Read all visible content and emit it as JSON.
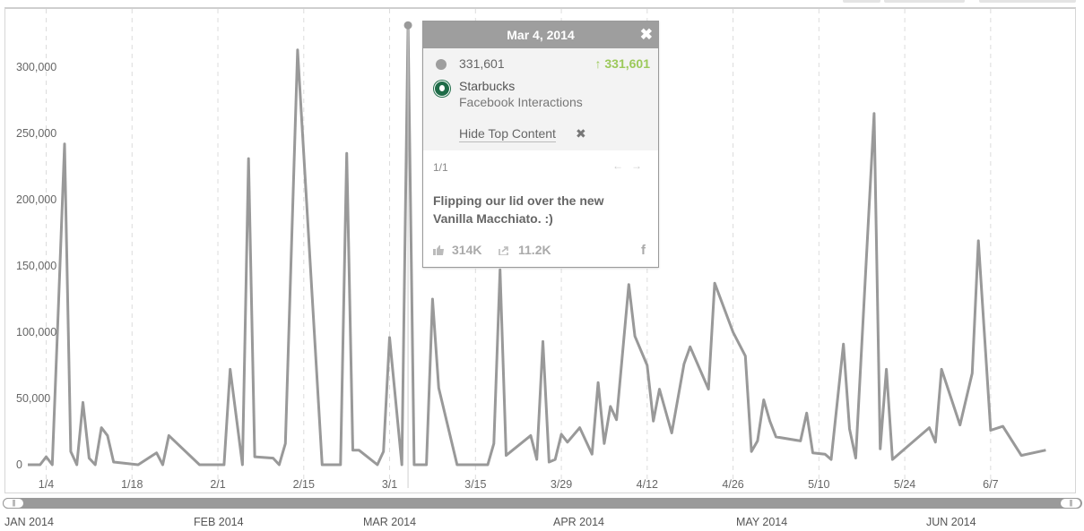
{
  "chart_data": {
    "type": "line",
    "title": "",
    "xlabel": "",
    "ylabel": "",
    "ylim": [
      0,
      340000
    ],
    "y_ticks": [
      "0",
      "50,000",
      "100,000",
      "150,000",
      "200,000",
      "250,000",
      "300,000"
    ],
    "y_tick_values": [
      0,
      50000,
      100000,
      150000,
      200000,
      250000,
      300000
    ],
    "x_ticks": [
      "1/4",
      "1/18",
      "2/1",
      "2/15",
      "3/1",
      "3/15",
      "3/29",
      "4/12",
      "4/26",
      "5/10",
      "5/24",
      "6/7"
    ],
    "x_tick_dates": [
      "2014-01-04",
      "2014-01-18",
      "2014-02-01",
      "2014-02-15",
      "2014-03-01",
      "2014-03-15",
      "2014-03-29",
      "2014-04-12",
      "2014-04-26",
      "2014-05-10",
      "2014-05-24",
      "2014-06-07"
    ],
    "grid": "vertical dashed lines at x ticks",
    "series": [
      {
        "color": "#999999",
        "points": [
          [
            "2014-01-01",
            0
          ],
          [
            "2014-01-02",
            0
          ],
          [
            "2014-01-03",
            0
          ],
          [
            "2014-01-04",
            6000
          ],
          [
            "2014-01-05",
            0
          ],
          [
            "2014-01-06",
            120000
          ],
          [
            "2014-01-07",
            242000
          ],
          [
            "2014-01-08",
            10000
          ],
          [
            "2014-01-09",
            0
          ],
          [
            "2014-01-10",
            47000
          ],
          [
            "2014-01-11",
            5000
          ],
          [
            "2014-01-12",
            0
          ],
          [
            "2014-01-13",
            28000
          ],
          [
            "2014-01-14",
            22000
          ],
          [
            "2014-01-15",
            2000
          ],
          [
            "2014-01-19",
            0
          ],
          [
            "2014-01-22",
            9000
          ],
          [
            "2014-01-23",
            0
          ],
          [
            "2014-01-24",
            22000
          ],
          [
            "2014-01-29",
            0
          ],
          [
            "2014-02-02",
            0
          ],
          [
            "2014-02-03",
            72000
          ],
          [
            "2014-02-05",
            0
          ],
          [
            "2014-02-06",
            231000
          ],
          [
            "2014-02-07",
            6000
          ],
          [
            "2014-02-10",
            5000
          ],
          [
            "2014-02-11",
            0
          ],
          [
            "2014-02-12",
            16000
          ],
          [
            "2014-02-14",
            313000
          ],
          [
            "2014-02-18",
            0
          ],
          [
            "2014-02-19",
            0
          ],
          [
            "2014-02-21",
            0
          ],
          [
            "2014-02-22",
            235000
          ],
          [
            "2014-02-23",
            11000
          ],
          [
            "2014-02-24",
            11000
          ],
          [
            "2014-02-27",
            0
          ],
          [
            "2014-02-28",
            10000
          ],
          [
            "2014-03-01",
            96000
          ],
          [
            "2014-03-03",
            0
          ],
          [
            "2014-03-04",
            331601
          ],
          [
            "2014-03-05",
            0
          ],
          [
            "2014-03-06",
            0
          ],
          [
            "2014-03-07",
            0
          ],
          [
            "2014-03-08",
            125000
          ],
          [
            "2014-03-09",
            58000
          ],
          [
            "2014-03-12",
            0
          ],
          [
            "2014-03-17",
            0
          ],
          [
            "2014-03-18",
            16000
          ],
          [
            "2014-03-19",
            147000
          ],
          [
            "2014-03-20",
            7000
          ],
          [
            "2014-03-24",
            22000
          ],
          [
            "2014-03-25",
            4000
          ],
          [
            "2014-03-26",
            93000
          ],
          [
            "2014-03-27",
            2000
          ],
          [
            "2014-03-28",
            4000
          ],
          [
            "2014-03-29",
            23000
          ],
          [
            "2014-03-30",
            17000
          ],
          [
            "2014-04-01",
            28000
          ],
          [
            "2014-04-03",
            8000
          ],
          [
            "2014-04-04",
            62000
          ],
          [
            "2014-04-05",
            16000
          ],
          [
            "2014-04-06",
            44000
          ],
          [
            "2014-04-07",
            34000
          ],
          [
            "2014-04-09",
            136000
          ],
          [
            "2014-04-10",
            97000
          ],
          [
            "2014-04-12",
            75000
          ],
          [
            "2014-04-13",
            33000
          ],
          [
            "2014-04-14",
            57000
          ],
          [
            "2014-04-16",
            24000
          ],
          [
            "2014-04-18",
            76000
          ],
          [
            "2014-04-19",
            89000
          ],
          [
            "2014-04-22",
            57000
          ],
          [
            "2014-04-23",
            137000
          ],
          [
            "2014-04-26",
            100000
          ],
          [
            "2014-04-28",
            82000
          ],
          [
            "2014-04-29",
            10000
          ],
          [
            "2014-04-30",
            18000
          ],
          [
            "2014-05-01",
            49000
          ],
          [
            "2014-05-02",
            33000
          ],
          [
            "2014-05-03",
            21000
          ],
          [
            "2014-05-07",
            18000
          ],
          [
            "2014-05-08",
            39000
          ],
          [
            "2014-05-09",
            9000
          ],
          [
            "2014-05-11",
            8000
          ],
          [
            "2014-05-12",
            4000
          ],
          [
            "2014-05-14",
            91000
          ],
          [
            "2014-05-15",
            27000
          ],
          [
            "2014-05-16",
            5000
          ],
          [
            "2014-05-19",
            265000
          ],
          [
            "2014-05-20",
            12000
          ],
          [
            "2014-05-21",
            72000
          ],
          [
            "2014-05-22",
            4000
          ],
          [
            "2014-05-28",
            28000
          ],
          [
            "2014-05-29",
            17000
          ],
          [
            "2014-05-30",
            72000
          ],
          [
            "2014-06-02",
            30000
          ],
          [
            "2014-06-04",
            69000
          ],
          [
            "2014-06-05",
            169000
          ],
          [
            "2014-06-07",
            26000
          ],
          [
            "2014-06-09",
            29000
          ],
          [
            "2014-06-12",
            7000
          ],
          [
            "2014-06-16",
            11000
          ]
        ]
      }
    ],
    "highlight": {
      "date": "2014-03-04",
      "value": 331601
    }
  },
  "navigator": {
    "months": [
      "JAN 2014",
      "FEB 2014",
      "MAR 2014",
      "APR 2014",
      "MAY 2014",
      "JUN 2014"
    ],
    "handle_glyph": "|||"
  },
  "tooltip": {
    "date": "Mar 4, 2014",
    "close_glyph": "✖",
    "value": "331,601",
    "change": "↑ 331,601",
    "change_color": "#9cc95a",
    "brand": "Starbucks",
    "metric": "Facebook Interactions",
    "hide_label": "Hide Top Content",
    "hide_glyph": "✖",
    "page": "1/1",
    "prev_glyph": "←",
    "next_glyph": "→",
    "post_text": "Flipping our lid over the new Vanilla Macchiato. :)",
    "likes": "314K",
    "shares": "11.2K",
    "network_glyph": "f",
    "icons": {
      "series_dot": "dot-icon",
      "brand": "starbucks-logo-icon",
      "likes": "thumbs-up-icon",
      "shares": "share-icon",
      "network": "facebook-icon"
    }
  }
}
